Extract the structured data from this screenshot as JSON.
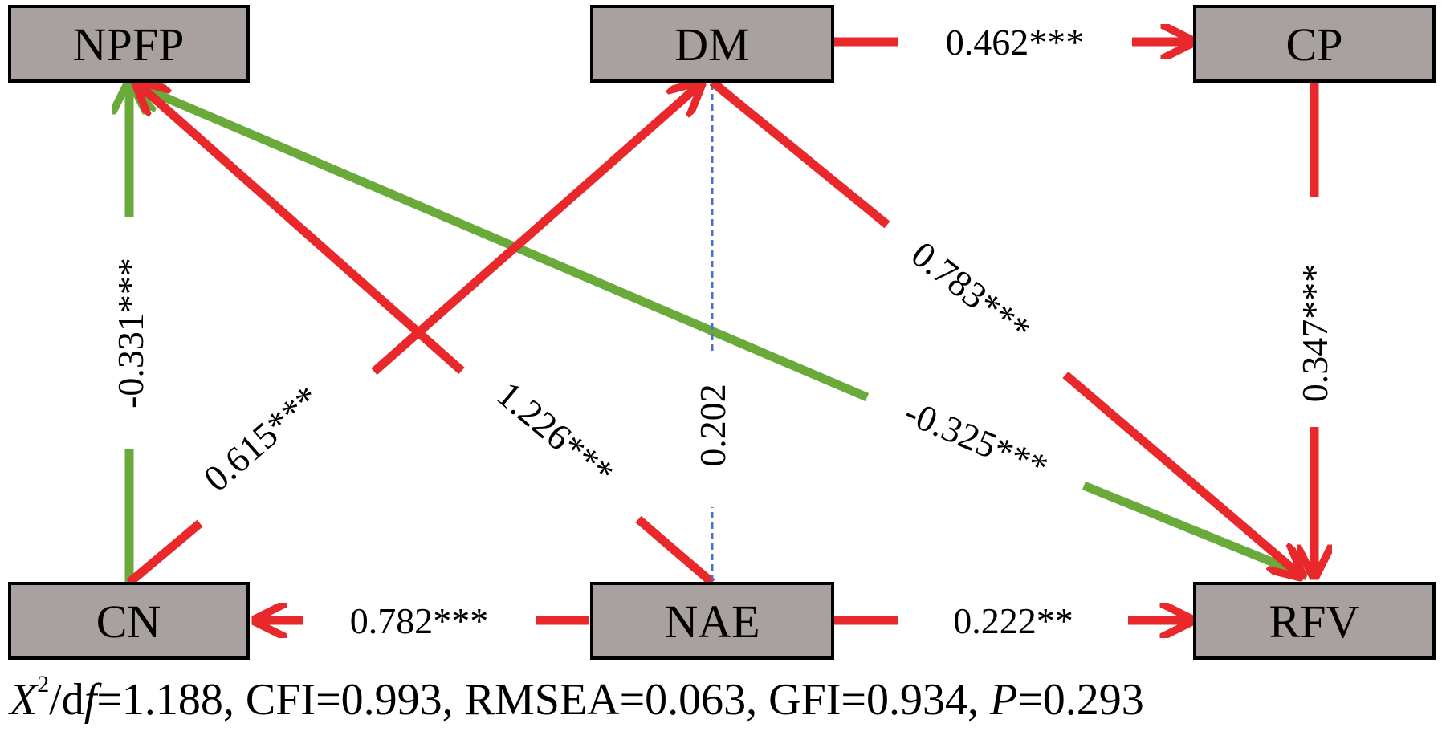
{
  "colors": {
    "positive": "#e8282b",
    "negative": "#6aaa3a",
    "nonsignificant": "#4a6fcf",
    "node_fill": "#a9a0a0"
  },
  "nodes": {
    "npfp": "NPFP",
    "dm": "DM",
    "cp": "CP",
    "cn": "CN",
    "nae": "NAE",
    "rfv": "RFV"
  },
  "paths": {
    "dm_cp": "0.462***",
    "cn_npfp": "-0.331***",
    "cn_dm": "0.615***",
    "nae_npfp": "1.226***",
    "nae_dm": "0.202",
    "dm_rfv": "0.783***",
    "rfv_npfp": "-0.325***",
    "cp_rfv": "0.347***",
    "nae_cn": "0.782***",
    "nae_rfv": "0.222**"
  },
  "fit": {
    "x": "X",
    "exp": "2",
    "slash_d": "/d",
    "f": "f",
    "rest": "=1.188, CFI=0.993, RMSEA=0.063, GFI=0.934, ",
    "p": "P",
    "p_val": "=0.293"
  }
}
